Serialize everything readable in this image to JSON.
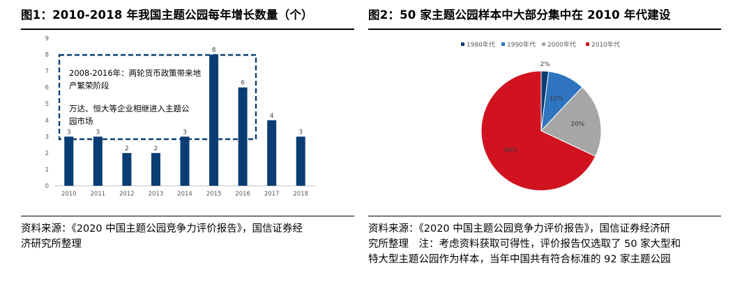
{
  "left": {
    "title": "图1：2010-2018 年我国主题公园每年增长数量（个）",
    "annotation_line1": "2008-2016年：两轮货币政策带来地",
    "annotation_line2": "产繁荣阶段",
    "annotation_line3": "万达、恒大等企业相继进入主题公",
    "annotation_line4": "园市场",
    "source_line1": "资料来源：《2020 中国主题公园竞争力评价报告》，国信证券经",
    "source_line2": "济研究所整理"
  },
  "right": {
    "title": "图2：50 家主题公园样本中大部分集中在 2010 年代建设",
    "source_line1": "资料来源：《2020 中国主题公园竞争力评价报告》，国信证券经济研",
    "source_line2": "究所整理　注：考虑资料获取可得性，评价报告仅选取了 50 家大型和",
    "source_line3": "特大型主题公园作为样本，当年中国共有符合标准的 92 家主题公园"
  },
  "chart_data": [
    {
      "type": "bar",
      "categories": [
        "2010",
        "2011",
        "2012",
        "2013",
        "2014",
        "2015",
        "2016",
        "2017",
        "2018"
      ],
      "values": [
        3,
        3,
        2,
        2,
        3,
        8,
        6,
        4,
        3
      ],
      "ylim": [
        0,
        9
      ],
      "yticks": [
        "0",
        "1",
        "2",
        "3",
        "4",
        "5",
        "6",
        "7",
        "8",
        "9"
      ],
      "data_labels": [
        "3",
        "3",
        "2",
        "2",
        "3",
        "8",
        "6",
        "4",
        "3"
      ],
      "color": "#0a3d73",
      "grid": false
    },
    {
      "type": "pie",
      "labels": [
        "1980年代",
        "1990年代",
        "2000年代",
        "2010年代"
      ],
      "values": [
        2,
        10,
        20,
        68
      ],
      "data_labels": [
        "2%",
        "10%",
        "20%",
        "68%"
      ],
      "colors": [
        "#0a3d73",
        "#2f74bf",
        "#a6a6a6",
        "#d0131f"
      ],
      "legend_position": "top"
    }
  ]
}
